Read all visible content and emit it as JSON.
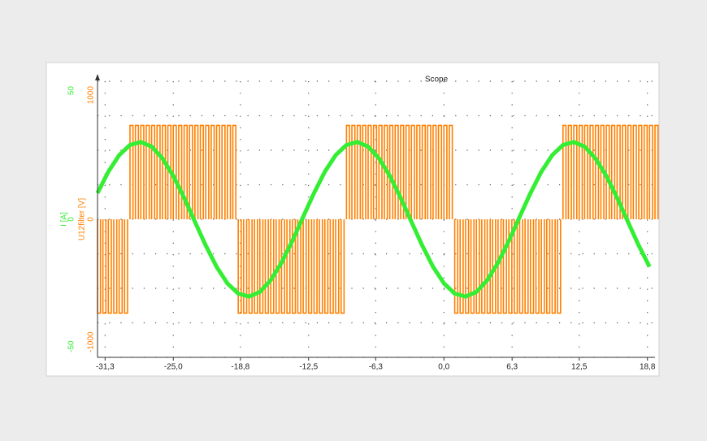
{
  "chart_data": {
    "type": "line",
    "title": "Scope",
    "xlim": [
      -32,
      19.5
    ],
    "xticks": [
      {
        "value": -31.3,
        "label": "-31,3"
      },
      {
        "value": -25,
        "label": "-25,0"
      },
      {
        "value": -18.8,
        "label": "-18,8"
      },
      {
        "value": -12.5,
        "label": "-12,5"
      },
      {
        "value": -6.3,
        "label": "-6,3"
      },
      {
        "value": 0,
        "label": "0,0"
      },
      {
        "value": 6.3,
        "label": "6,3"
      },
      {
        "value": 12.5,
        "label": "12,5"
      },
      {
        "value": 18.8,
        "label": "18,8"
      }
    ],
    "ylabel": "U12filter [V]",
    "ylim": [
      -1000,
      1000
    ],
    "yticks": [
      -1000,
      0,
      1000
    ],
    "y_minor_ticks": [
      -750,
      -500,
      -250,
      250,
      500,
      750
    ],
    "y2label": "I [A]",
    "y2lim": [
      -50,
      50
    ],
    "y2ticks": [
      -50,
      0,
      50
    ],
    "grid": true,
    "series": [
      {
        "name": "U12filter [V]",
        "color": "#ff8000",
        "style": "pulses",
        "x": [
          -32,
          -31.5,
          -31,
          -30.5,
          -30,
          -29.5,
          -29,
          -28.5,
          -28,
          -27.5,
          -27,
          -26.5,
          -26,
          -25.5,
          -25,
          -24.5,
          -24,
          -23.5,
          -23,
          -22.5,
          -22,
          -21.5,
          -21,
          -20.5,
          -20,
          -19.5,
          -19,
          -18.5,
          -18,
          -17.5,
          -17,
          -16.5,
          -16,
          -15.5,
          -15,
          -14.5,
          -14,
          -13.5,
          -13,
          -12.5,
          -12,
          -11.5,
          -11,
          -10.5,
          -10,
          -9.5,
          -9,
          -8.5,
          -8,
          -7.5,
          -7,
          -6.5,
          -6,
          -5.5,
          -5,
          -4.5,
          -4,
          -3.5,
          -3,
          -2.5,
          -2,
          -1.5,
          -1,
          -0.5,
          0,
          0.5,
          1,
          1.5,
          2,
          2.5,
          3,
          3.5,
          4,
          4.5,
          5,
          5.5,
          6,
          6.5,
          7,
          7.5,
          8,
          8.5,
          9,
          9.5,
          10,
          10.5,
          11,
          11.5,
          12,
          12.5,
          13,
          13.5,
          14,
          14.5,
          15,
          15.5,
          16,
          16.5,
          17,
          17.5,
          18,
          18.5,
          19,
          19.5
        ],
        "values": [
          -680,
          -680,
          -680,
          -680,
          -680,
          -680,
          680,
          680,
          680,
          680,
          680,
          680,
          680,
          680,
          680,
          680,
          680,
          680,
          680,
          680,
          680,
          680,
          680,
          680,
          680,
          680,
          -680,
          -680,
          -680,
          -680,
          -680,
          -680,
          -680,
          -680,
          -680,
          -680,
          -680,
          -680,
          -680,
          -680,
          -680,
          -680,
          -680,
          -680,
          -680,
          -680,
          680,
          680,
          680,
          680,
          680,
          680,
          680,
          680,
          680,
          680,
          680,
          680,
          680,
          680,
          680,
          680,
          680,
          680,
          680,
          680,
          -680,
          -680,
          -680,
          -680,
          -680,
          -680,
          -680,
          -680,
          -680,
          -680,
          -680,
          -680,
          -680,
          -680,
          -680,
          -680,
          -680,
          -680,
          -680,
          -680,
          680,
          680,
          680,
          680,
          680,
          680,
          680,
          680,
          680,
          680,
          680,
          680,
          680,
          680,
          680,
          680,
          680,
          680
        ]
      },
      {
        "name": "I [A]",
        "color": "#33ee33",
        "axis": "y2",
        "x": [
          -32,
          -31,
          -30,
          -29,
          -28,
          -27,
          -26,
          -25,
          -24,
          -23,
          -22,
          -21,
          -20,
          -19,
          -18,
          -17,
          -16,
          -15,
          -14,
          -13,
          -12,
          -11,
          -10,
          -9,
          -8,
          -7,
          -6,
          -5,
          -4,
          -3,
          -2,
          -1,
          0,
          1,
          2,
          3,
          4,
          5,
          6,
          7,
          8,
          9,
          10,
          11,
          12,
          13,
          14,
          15,
          16,
          17,
          18,
          19
        ],
        "values": [
          9.5,
          17.2,
          23.2,
          26.9,
          28.0,
          26.3,
          22.1,
          15.7,
          7.8,
          -0.9,
          -9.5,
          -17.2,
          -23.2,
          -26.9,
          -28.0,
          -26.3,
          -22.1,
          -15.7,
          -7.8,
          0.9,
          9.5,
          17.2,
          23.2,
          26.9,
          28.0,
          26.3,
          22.1,
          15.7,
          7.8,
          -0.9,
          -9.5,
          -17.2,
          -23.2,
          -26.9,
          -28.0,
          -26.3,
          -22.1,
          -15.7,
          -7.8,
          0.9,
          9.5,
          17.2,
          23.2,
          26.9,
          28.0,
          26.3,
          22.1,
          15.7,
          7.8,
          -0.9,
          -9.5,
          -17.2
        ]
      }
    ]
  }
}
